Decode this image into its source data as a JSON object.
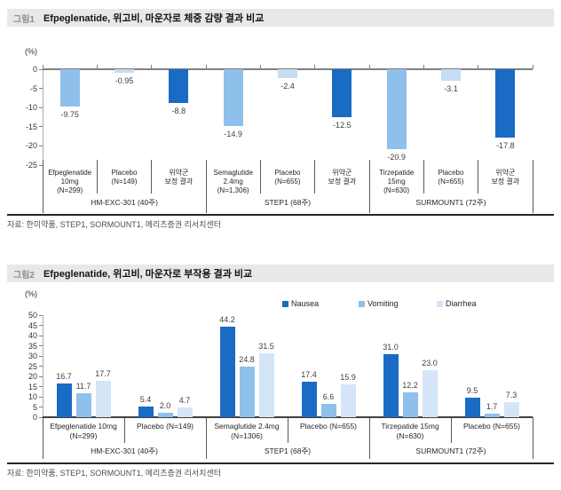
{
  "colors": {
    "dark_blue": "#1A6BC4",
    "mid_blue": "#8FC0EB",
    "pale_blue": "#C7DDF4",
    "lighter_blue": "#D4E5F7",
    "header_bg": "#E8E8E8",
    "tag_gray": "#8C8C8C",
    "axis_gray": "#7F7F7F",
    "table_line": "#595959"
  },
  "chart_data": [
    {
      "type": "bar",
      "tag": "그림1",
      "title": "Efpeglenatide, 위고비, 마운자로 체중 감량 결과 비교",
      "unit_label": "(%)",
      "source": "자료: 한미약품, STEP1, SORMOUNT1, 메리츠증권 리서치센터",
      "ylim": [
        -25,
        0
      ],
      "ytick_step": 5,
      "grid": false,
      "legend_position": "none",
      "categories": [
        [
          "Efpeglenatide",
          "10mg",
          "(N=299)"
        ],
        [
          "Placebo",
          "(N=149)"
        ],
        [
          "위약군",
          "보정 결과"
        ],
        [
          "Semaglutide",
          "2.4mg",
          "(N=1,306)"
        ],
        [
          "Placebo",
          "(N=655)"
        ],
        [
          "위약군",
          "보정 결과"
        ],
        [
          "Tirzepatide",
          "15mg",
          "(N=630)"
        ],
        [
          "Placebo",
          "(N=655)"
        ],
        [
          "위약군",
          "보정 결과"
        ]
      ],
      "values": [
        -9.75,
        -0.95,
        -8.8,
        -14.9,
        -2.4,
        -12.5,
        -20.9,
        -3.1,
        -17.8
      ],
      "value_labels": [
        "-9.75",
        "-0.95",
        "-8.8",
        "-14.9",
        "-2.4",
        "-12.5",
        "-20.9",
        "-3.1",
        "-17.8"
      ],
      "bar_color_keys": [
        "mid_blue",
        "pale_blue",
        "dark_blue",
        "mid_blue",
        "pale_blue",
        "dark_blue",
        "mid_blue",
        "pale_blue",
        "dark_blue"
      ],
      "groups": [
        {
          "label": "HM-EXC-301 (40주)",
          "span": 3
        },
        {
          "label": "STEP1 (68주)",
          "span": 3
        },
        {
          "label": "SURMOUNT1 (72주)",
          "span": 3
        }
      ]
    },
    {
      "type": "bar",
      "tag": "그림2",
      "title": "Efpeglenatide, 위고비, 마운자로 부작용 결과 비교",
      "unit_label": "(%)",
      "source": "자료: 한미약품, STEP1, SORMOUNT1, 메리츠증권 리서치센터",
      "ylim": [
        0,
        50
      ],
      "ytick_step": 5,
      "grid": false,
      "legend_position": "top-right",
      "categories": [
        [
          "Efpeglenatide 10mg",
          "(N=299)"
        ],
        [
          "Placebo (N=149)"
        ],
        [
          "Semaglutide 2.4mg",
          "(N=1306)"
        ],
        [
          "Placebo (N=655)"
        ],
        [
          "Tirzepatide 15mg",
          "(N=630)"
        ],
        [
          "Placebo (N=655)"
        ]
      ],
      "series": [
        {
          "name": "Nausea",
          "color_key": "dark_blue",
          "values": [
            16.7,
            5.4,
            44.2,
            17.4,
            31.0,
            9.5
          ],
          "value_labels": [
            "16.7",
            "5.4",
            "44.2",
            "17.4",
            "31.0",
            "9.5"
          ]
        },
        {
          "name": "Vomiting",
          "color_key": "mid_blue",
          "values": [
            11.7,
            2.0,
            24.8,
            6.6,
            12.2,
            1.7
          ],
          "value_labels": [
            "11.7",
            "2.0",
            "24.8",
            "6.6",
            "12.2",
            "1.7"
          ]
        },
        {
          "name": "Diarrhea",
          "color_key": "lighter_blue",
          "values": [
            17.7,
            4.7,
            31.5,
            15.9,
            23.0,
            7.3
          ],
          "value_labels": [
            "17.7",
            "4.7",
            "31.5",
            "15.9",
            "23.0",
            "7.3"
          ]
        }
      ],
      "groups": [
        {
          "label": "HM-EXC-301 (40주)",
          "span": 2
        },
        {
          "label": "STEP1 (68주)",
          "span": 2
        },
        {
          "label": "SURMOUNT1 (72주)",
          "span": 2
        }
      ]
    }
  ]
}
